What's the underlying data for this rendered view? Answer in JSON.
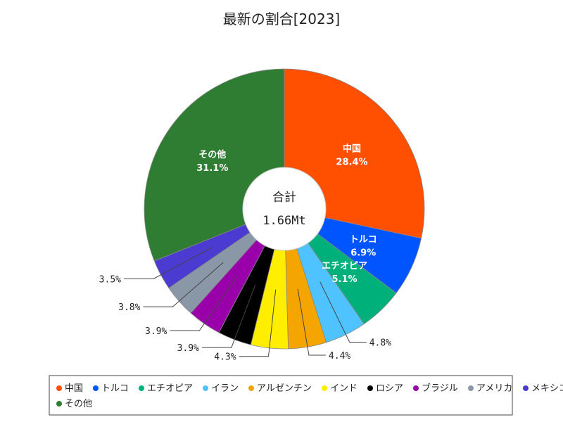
{
  "chart_data": {
    "type": "pie",
    "title": "最新の割合[2023]",
    "center_label": "合計",
    "center_value": "1.66Mt",
    "slices": [
      {
        "label": "中国",
        "value": 28.4,
        "value_label": "28.4%",
        "color": "#ff4f00"
      },
      {
        "label": "トルコ",
        "value": 6.9,
        "value_label": "6.9%",
        "color": "#0055ff"
      },
      {
        "label": "エチオピア",
        "value": 5.1,
        "value_label": "5.1%",
        "color": "#00b07a"
      },
      {
        "label": "イラン",
        "value": 4.8,
        "value_label": "4.8%",
        "color": "#4fc3ff"
      },
      {
        "label": "アルゼンチン",
        "value": 4.4,
        "value_label": "4.4%",
        "color": "#f5a500"
      },
      {
        "label": "インド",
        "value": 4.3,
        "value_label": "4.3%",
        "color": "#ffee00"
      },
      {
        "label": "ロシア",
        "value": 3.9,
        "value_label": "3.9%",
        "color": "#000000"
      },
      {
        "label": "ブラジル",
        "value": 3.9,
        "value_label": "3.9%",
        "color": "#9900aa"
      },
      {
        "label": "アメリカ",
        "value": 3.8,
        "value_label": "3.8%",
        "color": "#8a97a6"
      },
      {
        "label": "メキシコ",
        "value": 3.5,
        "value_label": "3.5%",
        "color": "#4b3bd0"
      },
      {
        "label": "その他",
        "value": 31.1,
        "value_label": "31.1%",
        "color": "#2e7d32"
      }
    ],
    "legend_position": "bottom"
  }
}
